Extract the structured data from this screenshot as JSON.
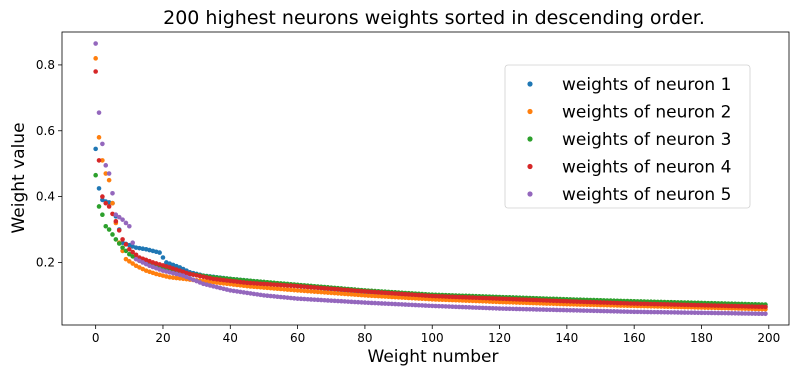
{
  "chart_data": {
    "type": "scatter",
    "title": "200 highest neurons weights sorted in descending order.",
    "xlabel": "Weight number",
    "ylabel": "Weight value",
    "xlim": [
      -10,
      206
    ],
    "ylim": [
      0.01,
      0.9
    ],
    "xticks": [
      0,
      20,
      40,
      60,
      80,
      100,
      120,
      140,
      160,
      180,
      200
    ],
    "yticks": [
      0.2,
      0.4,
      0.6,
      0.8
    ],
    "legend_position": "top-right",
    "grid": false,
    "n_points": 200,
    "series": [
      {
        "name": "weights of neuron 1",
        "color": "#1f77b4",
        "points": [
          {
            "x": 0,
            "y": 0.545
          },
          {
            "x": 1,
            "y": 0.425
          },
          {
            "x": 2,
            "y": 0.39
          },
          {
            "x": 3,
            "y": 0.385
          },
          {
            "x": 5,
            "y": 0.38
          },
          {
            "x": 8,
            "y": 0.26
          },
          {
            "x": 12,
            "y": 0.245
          },
          {
            "x": 15,
            "y": 0.24
          },
          {
            "x": 19,
            "y": 0.23
          },
          {
            "x": 21,
            "y": 0.2
          },
          {
            "x": 25,
            "y": 0.185
          },
          {
            "x": 28,
            "y": 0.17
          },
          {
            "x": 32,
            "y": 0.16
          },
          {
            "x": 40,
            "y": 0.15
          },
          {
            "x": 50,
            "y": 0.14
          },
          {
            "x": 60,
            "y": 0.128
          },
          {
            "x": 80,
            "y": 0.11
          },
          {
            "x": 100,
            "y": 0.095
          },
          {
            "x": 120,
            "y": 0.088
          },
          {
            "x": 140,
            "y": 0.08
          },
          {
            "x": 160,
            "y": 0.075
          },
          {
            "x": 180,
            "y": 0.07
          },
          {
            "x": 199,
            "y": 0.065
          }
        ]
      },
      {
        "name": "weights of neuron 2",
        "color": "#ff7f0e",
        "points": [
          {
            "x": 0,
            "y": 0.82
          },
          {
            "x": 1,
            "y": 0.58
          },
          {
            "x": 2,
            "y": 0.51
          },
          {
            "x": 3,
            "y": 0.47
          },
          {
            "x": 4,
            "y": 0.45
          },
          {
            "x": 5,
            "y": 0.38
          },
          {
            "x": 7,
            "y": 0.26
          },
          {
            "x": 9,
            "y": 0.21
          },
          {
            "x": 12,
            "y": 0.19
          },
          {
            "x": 15,
            "y": 0.175
          },
          {
            "x": 18,
            "y": 0.165
          },
          {
            "x": 22,
            "y": 0.155
          },
          {
            "x": 28,
            "y": 0.148
          },
          {
            "x": 35,
            "y": 0.14
          },
          {
            "x": 45,
            "y": 0.128
          },
          {
            "x": 60,
            "y": 0.115
          },
          {
            "x": 80,
            "y": 0.1
          },
          {
            "x": 100,
            "y": 0.088
          },
          {
            "x": 120,
            "y": 0.08
          },
          {
            "x": 140,
            "y": 0.073
          },
          {
            "x": 160,
            "y": 0.068
          },
          {
            "x": 180,
            "y": 0.063
          },
          {
            "x": 199,
            "y": 0.058
          }
        ]
      },
      {
        "name": "weights of neuron 3",
        "color": "#2ca02c",
        "points": [
          {
            "x": 0,
            "y": 0.465
          },
          {
            "x": 1,
            "y": 0.37
          },
          {
            "x": 2,
            "y": 0.345
          },
          {
            "x": 3,
            "y": 0.31
          },
          {
            "x": 4,
            "y": 0.3
          },
          {
            "x": 6,
            "y": 0.27
          },
          {
            "x": 8,
            "y": 0.245
          },
          {
            "x": 10,
            "y": 0.225
          },
          {
            "x": 13,
            "y": 0.205
          },
          {
            "x": 17,
            "y": 0.19
          },
          {
            "x": 22,
            "y": 0.175
          },
          {
            "x": 28,
            "y": 0.165
          },
          {
            "x": 35,
            "y": 0.155
          },
          {
            "x": 45,
            "y": 0.145
          },
          {
            "x": 60,
            "y": 0.132
          },
          {
            "x": 80,
            "y": 0.115
          },
          {
            "x": 100,
            "y": 0.102
          },
          {
            "x": 120,
            "y": 0.095
          },
          {
            "x": 140,
            "y": 0.088
          },
          {
            "x": 160,
            "y": 0.082
          },
          {
            "x": 180,
            "y": 0.077
          },
          {
            "x": 199,
            "y": 0.072
          }
        ]
      },
      {
        "name": "weights of neuron 4",
        "color": "#d62728",
        "points": [
          {
            "x": 0,
            "y": 0.78
          },
          {
            "x": 1,
            "y": 0.51
          },
          {
            "x": 2,
            "y": 0.4
          },
          {
            "x": 3,
            "y": 0.38
          },
          {
            "x": 4,
            "y": 0.37
          },
          {
            "x": 6,
            "y": 0.325
          },
          {
            "x": 8,
            "y": 0.27
          },
          {
            "x": 10,
            "y": 0.24
          },
          {
            "x": 13,
            "y": 0.215
          },
          {
            "x": 17,
            "y": 0.2
          },
          {
            "x": 22,
            "y": 0.185
          },
          {
            "x": 28,
            "y": 0.165
          },
          {
            "x": 35,
            "y": 0.15
          },
          {
            "x": 45,
            "y": 0.138
          },
          {
            "x": 60,
            "y": 0.128
          },
          {
            "x": 80,
            "y": 0.112
          },
          {
            "x": 100,
            "y": 0.098
          },
          {
            "x": 120,
            "y": 0.09
          },
          {
            "x": 140,
            "y": 0.082
          },
          {
            "x": 160,
            "y": 0.075
          },
          {
            "x": 180,
            "y": 0.07
          },
          {
            "x": 199,
            "y": 0.065
          }
        ]
      },
      {
        "name": "weights of neuron 5",
        "color": "#9467bd",
        "points": [
          {
            "x": 0,
            "y": 0.865
          },
          {
            "x": 1,
            "y": 0.655
          },
          {
            "x": 2,
            "y": 0.56
          },
          {
            "x": 3,
            "y": 0.495
          },
          {
            "x": 4,
            "y": 0.47
          },
          {
            "x": 5,
            "y": 0.41
          },
          {
            "x": 6,
            "y": 0.345
          },
          {
            "x": 8,
            "y": 0.33
          },
          {
            "x": 10,
            "y": 0.31
          },
          {
            "x": 12,
            "y": 0.21
          },
          {
            "x": 16,
            "y": 0.19
          },
          {
            "x": 20,
            "y": 0.175
          },
          {
            "x": 26,
            "y": 0.16
          },
          {
            "x": 32,
            "y": 0.135
          },
          {
            "x": 40,
            "y": 0.115
          },
          {
            "x": 50,
            "y": 0.1
          },
          {
            "x": 60,
            "y": 0.09
          },
          {
            "x": 80,
            "y": 0.078
          },
          {
            "x": 100,
            "y": 0.068
          },
          {
            "x": 120,
            "y": 0.06
          },
          {
            "x": 140,
            "y": 0.055
          },
          {
            "x": 160,
            "y": 0.05
          },
          {
            "x": 180,
            "y": 0.047
          },
          {
            "x": 199,
            "y": 0.044
          }
        ]
      }
    ]
  }
}
